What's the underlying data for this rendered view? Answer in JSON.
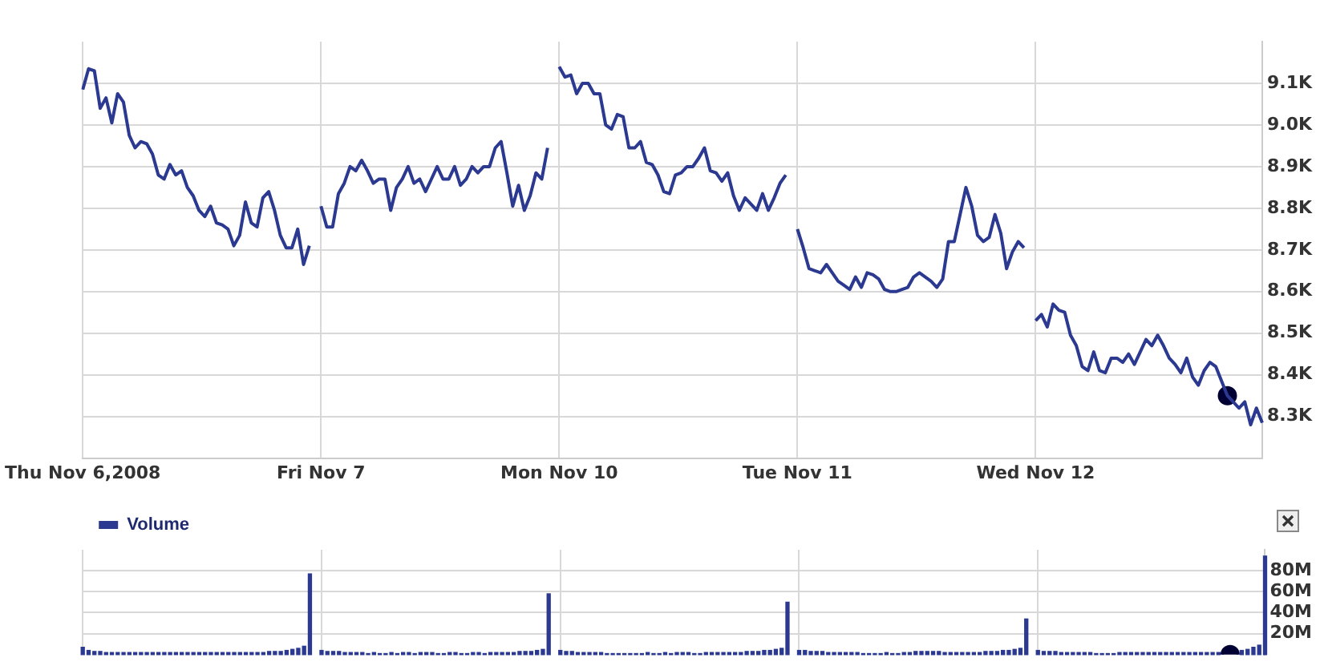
{
  "chart_data": [
    {
      "type": "line",
      "ylim": [
        8200,
        9200
      ],
      "categories": [
        "Thu Nov 6,2008",
        null,
        null,
        null,
        null,
        null,
        null,
        null,
        null,
        null,
        null,
        null,
        null,
        null,
        null,
        null,
        null,
        null,
        null,
        null,
        null,
        null,
        null,
        null,
        null,
        null,
        null,
        null,
        null,
        null,
        null,
        null,
        null,
        null,
        null,
        null,
        null,
        null,
        null,
        null,
        null,
        "Fri Nov 7",
        null,
        null,
        null,
        null,
        null,
        null,
        null,
        null,
        null,
        null,
        null,
        null,
        null,
        null,
        null,
        null,
        null,
        null,
        null,
        null,
        null,
        null,
        null,
        null,
        null,
        null,
        null,
        null,
        null,
        null,
        null,
        null,
        null,
        null,
        null,
        null,
        null,
        null,
        null,
        null,
        "Mon Nov 10",
        null,
        null,
        null,
        null,
        null,
        null,
        null,
        null,
        null,
        null,
        null,
        null,
        null,
        null,
        null,
        null,
        null,
        null,
        null,
        null,
        null,
        null,
        null,
        null,
        null,
        null,
        null,
        null,
        null,
        null,
        null,
        null,
        null,
        null,
        null,
        null,
        null,
        null,
        null,
        null,
        "Tue Nov 11",
        null,
        null,
        null,
        null,
        null,
        null,
        null,
        null,
        null,
        null,
        null,
        null,
        null,
        null,
        null,
        null,
        null,
        null,
        null,
        null,
        null,
        null,
        null,
        null,
        null,
        null,
        null,
        null,
        null,
        null,
        null,
        null,
        null,
        null,
        null,
        null,
        null,
        null,
        null,
        null,
        "Wed Nov 12",
        null,
        null,
        null,
        null,
        null,
        null,
        null,
        null,
        null,
        null,
        null,
        null,
        null,
        null,
        null,
        null,
        null,
        null,
        null,
        null,
        null,
        null,
        null,
        null,
        null,
        null,
        null,
        null,
        null,
        null,
        null,
        null,
        null,
        null,
        null,
        null,
        null,
        null,
        null
      ],
      "yticks": [
        {
          "value": 8300,
          "label": "8.3K"
        },
        {
          "value": 8400,
          "label": "8.4K"
        },
        {
          "value": 8500,
          "label": "8.5K"
        },
        {
          "value": 8600,
          "label": "8.6K"
        },
        {
          "value": 8700,
          "label": "8.7K"
        },
        {
          "value": 8800,
          "label": "8.8K"
        },
        {
          "value": 8900,
          "label": "8.9K"
        },
        {
          "value": 9000,
          "label": "9.0K"
        },
        {
          "value": 9100,
          "label": "9.1K"
        }
      ],
      "grid": true,
      "legend": false,
      "line_style": "solid",
      "series": [
        {
          "color": "#2b3990",
          "marker": "none",
          "values": [
            9085,
            9135,
            9130,
            9040,
            9065,
            9005,
            9075,
            9055,
            8975,
            8945,
            8960,
            8955,
            8930,
            8880,
            8870,
            8905,
            8880,
            8890,
            8850,
            8830,
            8795,
            8780,
            8805,
            8765,
            8760,
            8750,
            8710,
            8735,
            8815,
            8765,
            8755,
            8825,
            8840,
            8795,
            8735,
            8705,
            8705,
            8750,
            8665,
            8710,
            null,
            8805,
            8755,
            8755,
            8835,
            8860,
            8900,
            8890,
            8915,
            8890,
            8860,
            8870,
            8870,
            8795,
            8850,
            8870,
            8900,
            8860,
            8870,
            8840,
            8870,
            8900,
            8870,
            8870,
            8900,
            8855,
            8870,
            8900,
            8885,
            8900,
            8900,
            8945,
            8960,
            8885,
            8805,
            8855,
            8795,
            8830,
            8885,
            8870,
            8945,
            null,
            9140,
            9115,
            9120,
            9075,
            9100,
            9100,
            9075,
            9075,
            9000,
            8990,
            9025,
            9020,
            8945,
            8945,
            8960,
            8910,
            8905,
            8880,
            8840,
            8835,
            8880,
            8885,
            8900,
            8900,
            8920,
            8945,
            8890,
            8885,
            8865,
            8885,
            8830,
            8795,
            8825,
            8810,
            8795,
            8835,
            8795,
            8825,
            8860,
            8880,
            null,
            8750,
            8705,
            8655,
            8650,
            8645,
            8665,
            8645,
            8625,
            8615,
            8605,
            8635,
            8610,
            8645,
            8640,
            8630,
            8605,
            8600,
            8600,
            8605,
            8610,
            8635,
            8645,
            8635,
            8625,
            8610,
            8630,
            8720,
            8720,
            8785,
            8850,
            8805,
            8735,
            8720,
            8730,
            8785,
            8740,
            8655,
            8695,
            8720,
            8705,
            null,
            8530,
            8545,
            8515,
            8570,
            8555,
            8550,
            8495,
            8470,
            8420,
            8410,
            8455,
            8410,
            8405,
            8440,
            8440,
            8430,
            8450,
            8425,
            8455,
            8485,
            8470,
            8495,
            8470,
            8440,
            8425,
            8405,
            8440,
            8395,
            8375,
            8410,
            8430,
            8420,
            8385,
            8350,
            8335,
            8320,
            8335,
            8280,
            8320,
            8285
          ]
        },
        {
          "type": "line",
          "color": "#000033",
          "marker": "circle",
          "values": [
            null,
            null,
            null,
            null,
            null,
            null,
            null,
            null,
            null,
            null,
            null,
            null,
            null,
            null,
            null,
            null,
            null,
            null,
            null,
            null,
            null,
            null,
            null,
            null,
            null,
            null,
            null,
            null,
            null,
            null,
            null,
            null,
            null,
            null,
            null,
            null,
            null,
            null,
            null,
            null,
            null,
            null,
            null,
            null,
            null,
            null,
            null,
            null,
            null,
            null,
            null,
            null,
            null,
            null,
            null,
            null,
            null,
            null,
            null,
            null,
            null,
            null,
            null,
            null,
            null,
            null,
            null,
            null,
            null,
            null,
            null,
            null,
            null,
            null,
            null,
            null,
            null,
            null,
            null,
            null,
            null,
            null,
            null,
            null,
            null,
            null,
            null,
            null,
            null,
            null,
            null,
            null,
            null,
            null,
            null,
            null,
            null,
            null,
            null,
            null,
            null,
            null,
            null,
            null,
            null,
            null,
            null,
            null,
            null,
            null,
            null,
            null,
            null,
            null,
            null,
            null,
            null,
            null,
            null,
            null,
            null,
            null,
            null,
            null,
            null,
            null,
            null,
            null,
            null,
            null,
            null,
            null,
            null,
            null,
            null,
            null,
            null,
            null,
            null,
            null,
            null,
            null,
            null,
            null,
            null,
            null,
            null,
            null,
            null,
            null,
            null,
            null,
            null,
            null,
            null,
            null,
            null,
            null,
            null,
            null,
            null,
            null,
            null,
            null,
            null,
            null,
            null,
            null,
            null,
            null,
            null,
            null,
            null,
            null,
            null,
            null,
            null,
            null,
            null,
            null,
            null,
            null,
            null,
            null,
            null,
            null,
            null,
            null,
            null,
            null,
            null,
            null,
            null,
            null,
            null,
            null,
            null,
            8350,
            null,
            null,
            null,
            null,
            null,
            null
          ]
        }
      ]
    },
    {
      "type": "bar",
      "ylim": [
        0,
        100
      ],
      "categories": [
        null,
        null,
        null,
        null,
        null,
        null,
        null,
        null,
        null,
        null,
        null,
        null,
        null,
        null,
        null,
        null,
        null,
        null,
        null,
        null,
        null,
        null,
        null,
        null,
        null,
        null,
        null,
        null,
        null,
        null,
        null,
        null,
        null,
        null,
        null,
        null,
        null,
        null,
        null,
        null,
        null,
        null,
        null,
        null,
        null,
        null,
        null,
        null,
        null,
        null,
        null,
        null,
        null,
        null,
        null,
        null,
        null,
        null,
        null,
        null,
        null,
        null,
        null,
        null,
        null,
        null,
        null,
        null,
        null,
        null,
        null,
        null,
        null,
        null,
        null,
        null,
        null,
        null,
        null,
        null,
        null,
        null,
        null,
        null,
        null,
        null,
        null,
        null,
        null,
        null,
        null,
        null,
        null,
        null,
        null,
        null,
        null,
        null,
        null,
        null,
        null,
        null,
        null,
        null,
        null,
        null,
        null,
        null,
        null,
        null,
        null,
        null,
        null,
        null,
        null,
        null,
        null,
        null,
        null,
        null,
        null,
        null,
        null,
        null,
        null,
        null,
        null,
        null,
        null,
        null,
        null,
        null,
        null,
        null,
        null,
        null,
        null,
        null,
        null,
        null,
        null,
        null,
        null,
        null,
        null,
        null,
        null,
        null,
        null,
        null,
        null,
        null,
        null,
        null,
        null,
        null,
        null,
        null,
        null,
        null,
        null,
        null,
        null,
        null,
        null,
        null,
        null,
        null,
        null,
        null,
        null,
        null,
        null,
        null,
        null,
        null,
        null,
        null,
        null,
        null,
        null,
        null,
        null,
        null,
        null,
        null,
        null,
        null,
        null,
        null,
        null,
        null,
        null,
        null,
        null,
        null,
        null,
        null,
        null,
        null,
        null,
        null,
        null,
        null
      ],
      "yticks": [
        {
          "value": 20,
          "label": "20M"
        },
        {
          "value": 40,
          "label": "40M"
        },
        {
          "value": 60,
          "label": "60M"
        },
        {
          "value": 80,
          "label": "80M"
        }
      ],
      "grid": true,
      "legend": "top left",
      "tick_labels": "y",
      "series": [
        {
          "name": "Volume",
          "color": "#2b3990",
          "values": [
            7,
            4,
            3,
            3,
            2,
            2,
            2,
            2,
            2,
            2,
            2,
            2,
            2,
            2,
            2,
            2,
            2,
            2,
            2,
            2,
            2,
            2,
            2,
            2,
            2,
            2,
            2,
            2,
            2,
            2,
            2,
            2,
            3,
            3,
            3,
            4,
            5,
            6,
            8,
            77,
            null,
            4,
            3,
            3,
            3,
            2,
            2,
            2,
            2,
            1,
            2,
            1,
            1,
            2,
            1,
            2,
            2,
            1,
            2,
            2,
            2,
            1,
            1,
            2,
            2,
            1,
            1,
            2,
            2,
            1,
            2,
            2,
            2,
            2,
            2,
            3,
            3,
            3,
            4,
            5,
            58,
            null,
            4,
            3,
            3,
            2,
            2,
            2,
            2,
            2,
            1,
            1,
            1,
            1,
            1,
            1,
            1,
            2,
            1,
            1,
            2,
            1,
            2,
            2,
            2,
            1,
            1,
            2,
            2,
            2,
            2,
            2,
            2,
            2,
            3,
            3,
            3,
            4,
            4,
            5,
            6,
            50,
            null,
            4,
            4,
            3,
            3,
            3,
            2,
            2,
            2,
            2,
            2,
            2,
            1,
            1,
            1,
            1,
            2,
            1,
            1,
            2,
            2,
            3,
            3,
            3,
            3,
            3,
            2,
            2,
            2,
            2,
            2,
            2,
            2,
            3,
            3,
            3,
            4,
            4,
            5,
            6,
            34,
            null,
            4,
            3,
            3,
            3,
            2,
            2,
            2,
            2,
            2,
            2,
            1,
            1,
            1,
            1,
            2,
            2,
            2,
            2,
            2,
            2,
            2,
            2,
            2,
            2,
            2,
            2,
            2,
            2,
            2,
            2,
            2,
            2,
            null,
            null,
            null,
            4,
            5,
            7,
            9,
            94
          ]
        },
        {
          "type": "line",
          "color": "#000033",
          "marker": "circle",
          "values": [
            null,
            null,
            null,
            null,
            null,
            null,
            null,
            null,
            null,
            null,
            null,
            null,
            null,
            null,
            null,
            null,
            null,
            null,
            null,
            null,
            null,
            null,
            null,
            null,
            null,
            null,
            null,
            null,
            null,
            null,
            null,
            null,
            null,
            null,
            null,
            null,
            null,
            null,
            null,
            null,
            null,
            null,
            null,
            null,
            null,
            null,
            null,
            null,
            null,
            null,
            null,
            null,
            null,
            null,
            null,
            null,
            null,
            null,
            null,
            null,
            null,
            null,
            null,
            null,
            null,
            null,
            null,
            null,
            null,
            null,
            null,
            null,
            null,
            null,
            null,
            null,
            null,
            null,
            null,
            null,
            null,
            null,
            null,
            null,
            null,
            null,
            null,
            null,
            null,
            null,
            null,
            null,
            null,
            null,
            null,
            null,
            null,
            null,
            null,
            null,
            null,
            null,
            null,
            null,
            null,
            null,
            null,
            null,
            null,
            null,
            null,
            null,
            null,
            null,
            null,
            null,
            null,
            null,
            null,
            null,
            null,
            null,
            null,
            null,
            null,
            null,
            null,
            null,
            null,
            null,
            null,
            null,
            null,
            null,
            null,
            null,
            null,
            null,
            null,
            null,
            null,
            null,
            null,
            null,
            null,
            null,
            null,
            null,
            null,
            null,
            null,
            null,
            null,
            null,
            null,
            null,
            null,
            null,
            null,
            null,
            null,
            null,
            null,
            null,
            null,
            null,
            null,
            null,
            null,
            null,
            null,
            null,
            null,
            null,
            null,
            null,
            null,
            null,
            null,
            null,
            null,
            null,
            null,
            null,
            null,
            null,
            null,
            null,
            null,
            null,
            null,
            null,
            null,
            null,
            null,
            null,
            null,
            0,
            null,
            null,
            null,
            null,
            null,
            null
          ]
        }
      ]
    }
  ]
}
